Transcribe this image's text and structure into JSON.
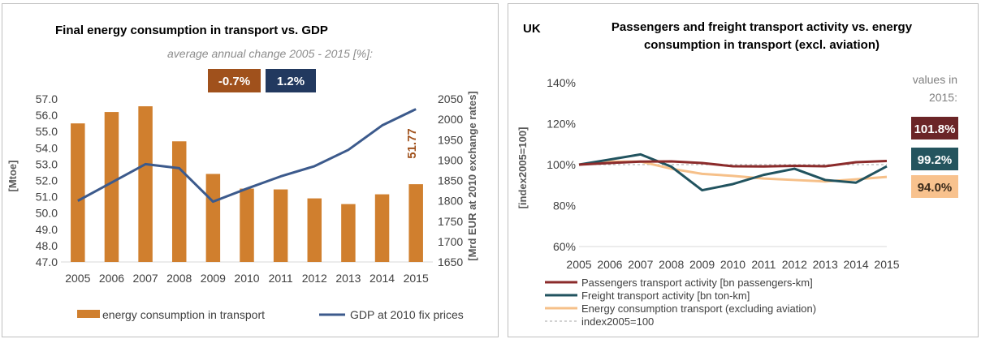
{
  "chart_data": [
    {
      "type": "bar+line",
      "title": "Final energy consumption in transport vs. GDP",
      "subtitle": "average annual change 2005 - 2015 [%]:",
      "categories": [
        "2005",
        "2006",
        "2007",
        "2008",
        "2009",
        "2010",
        "2011",
        "2012",
        "2013",
        "2014",
        "2015"
      ],
      "ylabel": "[Mtoe]",
      "y2label": "[Mrd EUR at 2010 exchange rates]",
      "ylim": [
        47.0,
        57.0
      ],
      "y2lim": [
        1650,
        2050
      ],
      "yticks": [
        "47.0",
        "48.0",
        "49.0",
        "50.0",
        "51.0",
        "52.0",
        "53.0",
        "54.0",
        "55.0",
        "56.0",
        "57.0"
      ],
      "y2ticks": [
        "1650",
        "1700",
        "1750",
        "1800",
        "1850",
        "1900",
        "1950",
        "2000",
        "2050"
      ],
      "series": [
        {
          "name": "energy consumption in transport",
          "type": "bar",
          "axis": "left",
          "color": "#d07f2e",
          "values": [
            55.5,
            56.2,
            56.55,
            54.4,
            52.4,
            51.5,
            51.45,
            50.9,
            50.55,
            51.15,
            51.77
          ]
        },
        {
          "name": "GDP at 2010 fix prices",
          "type": "line",
          "axis": "right",
          "color": "#3c5a8c",
          "values": [
            1800,
            1845,
            1890,
            1880,
            1798,
            1830,
            1860,
            1885,
            1925,
            1985,
            2025
          ]
        }
      ],
      "last_value_label": "51.77",
      "change_badges": [
        {
          "text": "-0.7%",
          "color": "#a0511c"
        },
        {
          "text": "1.2%",
          "color": "#22395f"
        }
      ],
      "legend_position": "bottom"
    },
    {
      "type": "line",
      "region_label": "UK",
      "title_line1": "Passengers and freight transport activity vs. energy",
      "title_line2": "consumption in transport (excl. aviation)",
      "categories": [
        "2005",
        "2006",
        "2007",
        "2008",
        "2009",
        "2010",
        "2011",
        "2012",
        "2013",
        "2014",
        "2015"
      ],
      "ylabel": "[index2005=100]",
      "ylim": [
        60,
        140
      ],
      "yticks": [
        "60%",
        "80%",
        "100%",
        "120%",
        "140%"
      ],
      "values_caption_1": "values in",
      "values_caption_2": "2015:",
      "series": [
        {
          "name": "Passengers transport activity [bn passengers-km]",
          "color": "#8b2b2b",
          "values": [
            100,
            100.8,
            101.5,
            101.6,
            100.8,
            99.2,
            99.1,
            99.4,
            99.2,
            101.2,
            101.8
          ],
          "badge": "101.8%",
          "badge_color": "#6b2527"
        },
        {
          "name": "Freight transport activity [bn ton-km]",
          "color": "#21535f",
          "values": [
            100,
            102.5,
            105,
            99,
            87.5,
            90.5,
            95,
            98,
            92.5,
            91.2,
            99.2
          ],
          "badge": "99.2%",
          "badge_color": "#24545e"
        },
        {
          "name": "Energy consumption transport (excluding aviation)",
          "color": "#f6c089",
          "values": [
            100,
            101.5,
            101.5,
            98,
            95.5,
            94.5,
            93.2,
            92.5,
            91.8,
            92.8,
            94.0
          ],
          "badge": "94.0%",
          "badge_color": "#f8c28e"
        },
        {
          "name": "index2005=100",
          "color": "#a6a6a6",
          "dashed": true,
          "values": [
            100,
            100,
            100,
            100,
            100,
            100,
            100,
            100,
            100,
            100,
            100
          ]
        }
      ],
      "legend_position": "bottom"
    }
  ]
}
